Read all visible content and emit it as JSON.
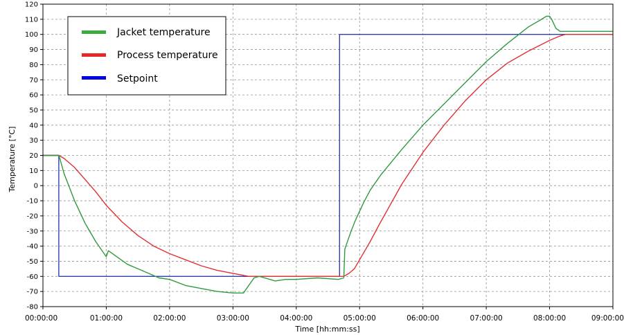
{
  "chart_data": {
    "type": "line",
    "title": "",
    "xlabel": "Time [hh:mm:ss]",
    "ylabel": "Temperature [°C]",
    "xlim": [
      0,
      540
    ],
    "ylim": [
      -80,
      120
    ],
    "yticks": [
      120,
      110,
      100,
      90,
      80,
      70,
      60,
      50,
      40,
      30,
      20,
      10,
      0,
      -10,
      -20,
      -30,
      -40,
      -50,
      -60,
      -70,
      -80
    ],
    "xticks": [
      {
        "min": 0,
        "label": "00:00:00"
      },
      {
        "min": 60,
        "label": "01:00:00"
      },
      {
        "min": 120,
        "label": "02:00:00"
      },
      {
        "min": 180,
        "label": "03:00:00"
      },
      {
        "min": 240,
        "label": "04:00:00"
      },
      {
        "min": 300,
        "label": "05:00:00"
      },
      {
        "min": 360,
        "label": "06:00:00"
      },
      {
        "min": 420,
        "label": "07:00:00"
      },
      {
        "min": 480,
        "label": "08:00:00"
      },
      {
        "min": 540,
        "label": "09:00:00"
      }
    ],
    "grid": true,
    "legend_position": "top-left",
    "series": [
      {
        "name": "Jacket temperature",
        "color": "#2e9a3e",
        "x": [
          0,
          15,
          16,
          20,
          30,
          40,
          50,
          60,
          62,
          70,
          80,
          90,
          100,
          110,
          120,
          135,
          150,
          165,
          180,
          190,
          195,
          200,
          205,
          210,
          215,
          220,
          230,
          240,
          260,
          280,
          285,
          286,
          288,
          292,
          296,
          300,
          304,
          310,
          320,
          340,
          360,
          380,
          400,
          420,
          440,
          460,
          470,
          477,
          480,
          482,
          486,
          490,
          495,
          500,
          510,
          520,
          540
        ],
        "y": [
          20,
          20,
          18,
          8,
          -10,
          -25,
          -37,
          -47,
          -43,
          -47,
          -52,
          -55,
          -58,
          -61,
          -62,
          -66,
          -68,
          -70,
          -71,
          -71,
          -66,
          -61,
          -60,
          -61,
          -62,
          -63,
          -62,
          -62,
          -61,
          -62,
          -61,
          -42,
          -38,
          -30,
          -23,
          -17,
          -11,
          -3,
          7,
          24,
          40,
          54,
          68,
          82,
          94,
          105,
          109,
          112,
          112,
          110,
          104,
          102,
          102,
          102,
          102,
          102,
          102
        ]
      },
      {
        "name": "Process temperature",
        "color": "#e03030",
        "x": [
          0,
          15,
          20,
          30,
          40,
          50,
          60,
          75,
          90,
          105,
          120,
          135,
          150,
          165,
          180,
          195,
          205,
          220,
          240,
          260,
          280,
          285,
          290,
          295,
          300,
          310,
          320,
          340,
          360,
          380,
          400,
          420,
          440,
          460,
          480,
          490,
          495,
          500,
          510,
          520,
          540
        ],
        "y": [
          20,
          20,
          18,
          12,
          4,
          -4,
          -13,
          -24,
          -33,
          -40,
          -45,
          -49,
          -53,
          -56,
          -58,
          -60,
          -60,
          -60,
          -60,
          -60,
          -60,
          -60,
          -58,
          -55,
          -49,
          -37,
          -24,
          1,
          22,
          40,
          56,
          70,
          81,
          89,
          96,
          99,
          100,
          100,
          100,
          100,
          100
        ]
      },
      {
        "name": "Setpoint",
        "color": "#2f3fb0",
        "x": [
          0,
          15,
          15,
          281,
          281,
          540
        ],
        "y": [
          20,
          20,
          -60,
          -60,
          100,
          100
        ]
      }
    ]
  },
  "legend": {
    "items": [
      {
        "label": "Jacket temperature",
        "color": "#3caa3c"
      },
      {
        "label": "Process temperature",
        "color": "#e82626"
      },
      {
        "label": "Setpoint",
        "color": "#0000e0"
      }
    ]
  }
}
